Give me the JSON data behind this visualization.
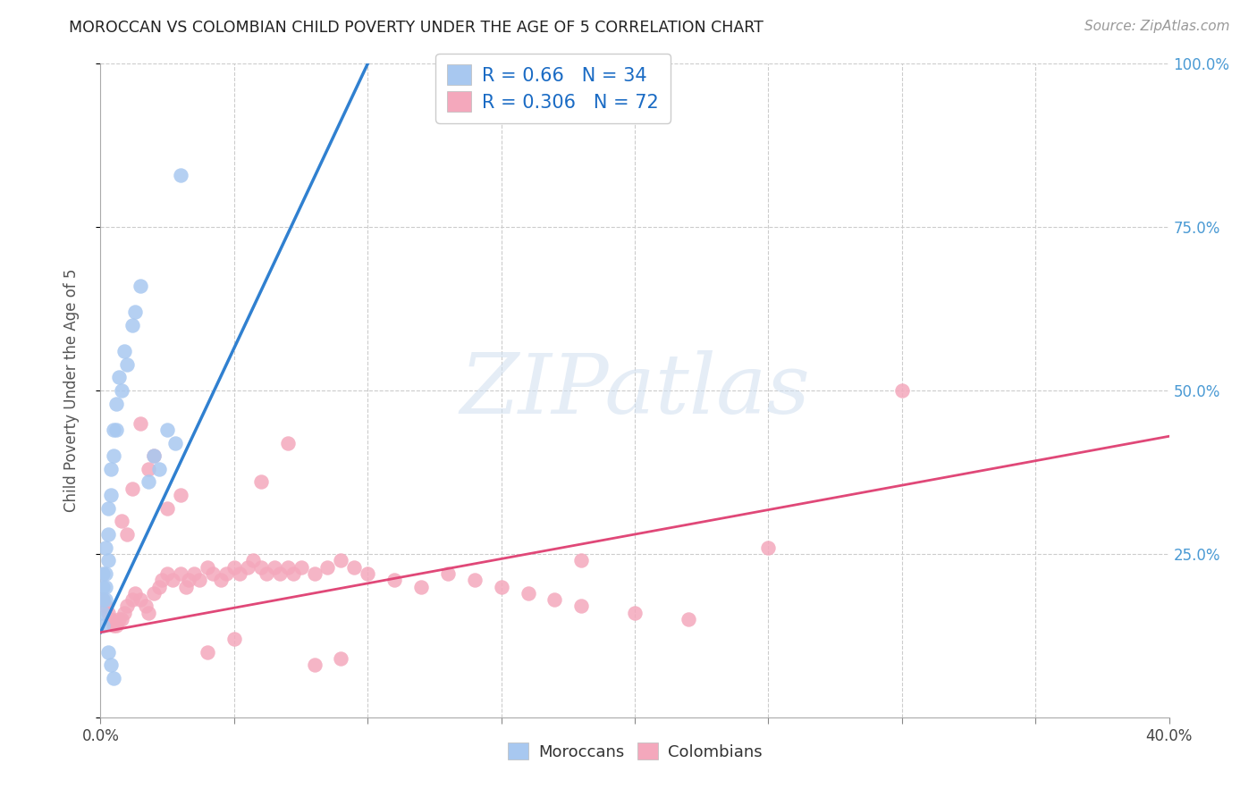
{
  "title": "MOROCCAN VS COLOMBIAN CHILD POVERTY UNDER THE AGE OF 5 CORRELATION CHART",
  "source": "Source: ZipAtlas.com",
  "ylabel": "Child Poverty Under the Age of 5",
  "xlim": [
    0.0,
    0.4
  ],
  "ylim": [
    0.0,
    1.0
  ],
  "moroccan_color": "#a8c8f0",
  "colombian_color": "#f4a8bc",
  "blue_line_color": "#3080d0",
  "pink_line_color": "#e04878",
  "legend_text_color": "#1a6bc4",
  "watermark_text": "ZIPatlas",
  "watermark_color": "#d0dff0",
  "moroccan_R": 0.66,
  "moroccan_N": 34,
  "colombian_R": 0.306,
  "colombian_N": 72,
  "blue_line_x": [
    0.0,
    0.1
  ],
  "blue_line_y": [
    0.13,
    1.0
  ],
  "pink_line_x": [
    0.0,
    0.4
  ],
  "pink_line_y": [
    0.13,
    0.43
  ],
  "moroccan_points_x": [
    0.001,
    0.001,
    0.001,
    0.001,
    0.001,
    0.002,
    0.002,
    0.002,
    0.002,
    0.003,
    0.003,
    0.003,
    0.004,
    0.004,
    0.005,
    0.005,
    0.006,
    0.006,
    0.007,
    0.008,
    0.009,
    0.01,
    0.012,
    0.013,
    0.015,
    0.018,
    0.02,
    0.022,
    0.025,
    0.028,
    0.003,
    0.004,
    0.005,
    0.03
  ],
  "moroccan_points_y": [
    0.18,
    0.2,
    0.22,
    0.16,
    0.14,
    0.22,
    0.2,
    0.18,
    0.26,
    0.32,
    0.28,
    0.24,
    0.38,
    0.34,
    0.44,
    0.4,
    0.48,
    0.44,
    0.52,
    0.5,
    0.56,
    0.54,
    0.6,
    0.62,
    0.66,
    0.36,
    0.4,
    0.38,
    0.44,
    0.42,
    0.1,
    0.08,
    0.06,
    0.83
  ],
  "colombian_points_x": [
    0.001,
    0.002,
    0.003,
    0.004,
    0.005,
    0.006,
    0.007,
    0.008,
    0.009,
    0.01,
    0.012,
    0.013,
    0.015,
    0.017,
    0.018,
    0.02,
    0.022,
    0.023,
    0.025,
    0.027,
    0.03,
    0.032,
    0.033,
    0.035,
    0.037,
    0.04,
    0.042,
    0.045,
    0.047,
    0.05,
    0.052,
    0.055,
    0.057,
    0.06,
    0.062,
    0.065,
    0.067,
    0.07,
    0.072,
    0.075,
    0.08,
    0.085,
    0.09,
    0.095,
    0.1,
    0.11,
    0.12,
    0.13,
    0.14,
    0.15,
    0.16,
    0.17,
    0.18,
    0.2,
    0.22,
    0.008,
    0.01,
    0.012,
    0.015,
    0.018,
    0.02,
    0.025,
    0.03,
    0.04,
    0.05,
    0.06,
    0.07,
    0.08,
    0.09,
    0.3,
    0.25,
    0.18
  ],
  "colombian_points_y": [
    0.18,
    0.17,
    0.16,
    0.15,
    0.14,
    0.14,
    0.15,
    0.15,
    0.16,
    0.17,
    0.18,
    0.19,
    0.18,
    0.17,
    0.16,
    0.19,
    0.2,
    0.21,
    0.22,
    0.21,
    0.22,
    0.2,
    0.21,
    0.22,
    0.21,
    0.23,
    0.22,
    0.21,
    0.22,
    0.23,
    0.22,
    0.23,
    0.24,
    0.23,
    0.22,
    0.23,
    0.22,
    0.23,
    0.22,
    0.23,
    0.22,
    0.23,
    0.24,
    0.23,
    0.22,
    0.21,
    0.2,
    0.22,
    0.21,
    0.2,
    0.19,
    0.18,
    0.17,
    0.16,
    0.15,
    0.3,
    0.28,
    0.35,
    0.45,
    0.38,
    0.4,
    0.32,
    0.34,
    0.1,
    0.12,
    0.36,
    0.42,
    0.08,
    0.09,
    0.5,
    0.26,
    0.24
  ]
}
